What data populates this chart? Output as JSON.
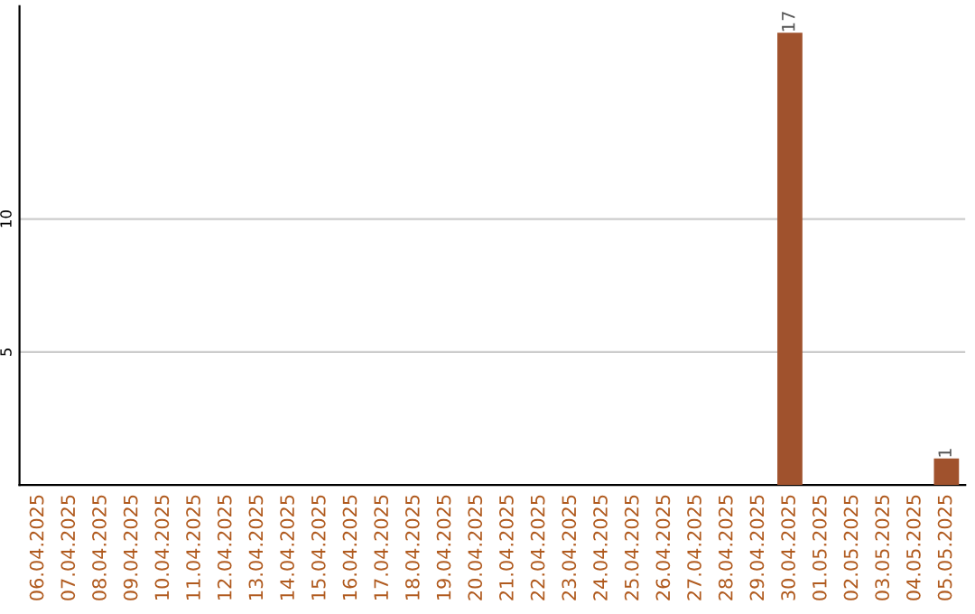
{
  "chart_data": {
    "type": "bar",
    "categories": [
      "06.04.2025",
      "07.04.2025",
      "08.04.2025",
      "09.04.2025",
      "10.04.2025",
      "11.04.2025",
      "12.04.2025",
      "13.04.2025",
      "14.04.2025",
      "15.04.2025",
      "16.04.2025",
      "17.04.2025",
      "18.04.2025",
      "19.04.2025",
      "20.04.2025",
      "21.04.2025",
      "22.04.2025",
      "23.04.2025",
      "24.04.2025",
      "25.04.2025",
      "26.04.2025",
      "27.04.2025",
      "28.04.2025",
      "29.04.2025",
      "30.04.2025",
      "01.05.2025",
      "02.05.2025",
      "03.05.2025",
      "04.05.2025",
      "05.05.2025"
    ],
    "values": [
      0,
      0,
      0,
      0,
      0,
      0,
      0,
      0,
      0,
      0,
      0,
      0,
      0,
      0,
      0,
      0,
      0,
      0,
      0,
      0,
      0,
      0,
      0,
      0,
      17,
      0,
      0,
      0,
      0,
      1
    ],
    "value_labels": [
      null,
      null,
      null,
      null,
      null,
      null,
      null,
      null,
      null,
      null,
      null,
      null,
      null,
      null,
      null,
      null,
      null,
      null,
      null,
      null,
      null,
      null,
      null,
      null,
      "17",
      null,
      null,
      null,
      null,
      "1"
    ],
    "color": "#a0522d",
    "ylim": [
      0,
      18
    ],
    "yticks": [
      5,
      10
    ],
    "grid": "y"
  }
}
